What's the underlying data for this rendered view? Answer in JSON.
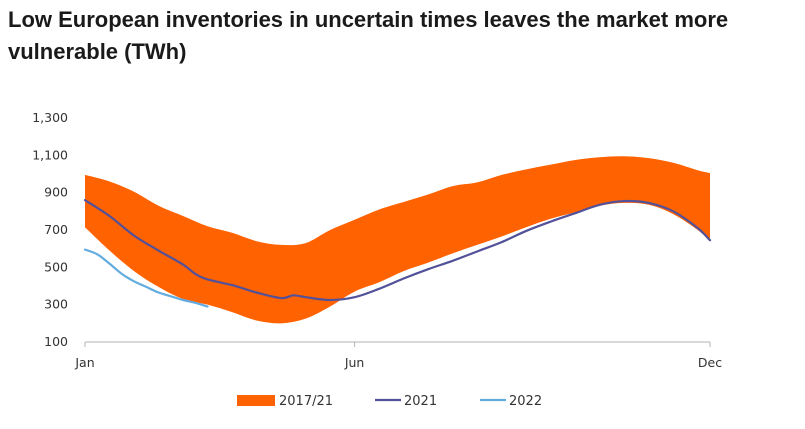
{
  "chart_data": {
    "type": "area",
    "title": "Low European inventories in uncertain times leaves the market more vulnerable (TWh)",
    "xlabel": "",
    "ylabel": "",
    "x_tick_labels": [
      "Jan",
      "Jun",
      "Dec"
    ],
    "x_tick_weeks": [
      1,
      23,
      52
    ],
    "x_range": [
      1,
      52
    ],
    "y_ticks": [
      100,
      300,
      500,
      700,
      900,
      1100,
      1300
    ],
    "y_tick_labels": [
      "100",
      "300",
      "500",
      "700",
      "900",
      "1,100",
      "1,300"
    ],
    "ylim": [
      100,
      1300
    ],
    "grid": false,
    "legend_position": "bottom",
    "series": [
      {
        "name": "2017/21",
        "kind": "range",
        "color": "#ff6200",
        "x": [
          1,
          3,
          5,
          7,
          9,
          11,
          13,
          15,
          17,
          19,
          21,
          23,
          25,
          27,
          29,
          31,
          33,
          35,
          37,
          39,
          41,
          43,
          45,
          47,
          49,
          51,
          52
        ],
        "upper": [
          995,
          960,
          905,
          830,
          775,
          720,
          685,
          640,
          620,
          630,
          700,
          755,
          810,
          850,
          890,
          935,
          955,
          995,
          1025,
          1050,
          1075,
          1090,
          1095,
          1085,
          1060,
          1020,
          1005
        ],
        "lower": [
          715,
          590,
          480,
          395,
          330,
          300,
          260,
          215,
          200,
          225,
          290,
          370,
          420,
          480,
          525,
          575,
          620,
          665,
          715,
          760,
          795,
          830,
          845,
          835,
          785,
          700,
          640
        ]
      },
      {
        "name": "2021",
        "kind": "line",
        "color": "#525199",
        "x": [
          1,
          3,
          5,
          7,
          9,
          10,
          11,
          13,
          15,
          17,
          18,
          19,
          21,
          23,
          25,
          27,
          29,
          31,
          33,
          35,
          37,
          39,
          41,
          43,
          45,
          47,
          49,
          51,
          52
        ],
        "values": [
          860,
          775,
          670,
          590,
          515,
          465,
          435,
          405,
          365,
          335,
          350,
          340,
          325,
          340,
          385,
          440,
          490,
          535,
          585,
          635,
          695,
          745,
          790,
          835,
          855,
          845,
          800,
          710,
          645
        ]
      },
      {
        "name": "2022",
        "kind": "line",
        "color": "#63acdf",
        "x": [
          1,
          2,
          3,
          4,
          5,
          6,
          7,
          8,
          9,
          10,
          11
        ],
        "values": [
          595,
          570,
          520,
          465,
          425,
          395,
          365,
          345,
          325,
          310,
          290
        ]
      }
    ]
  }
}
